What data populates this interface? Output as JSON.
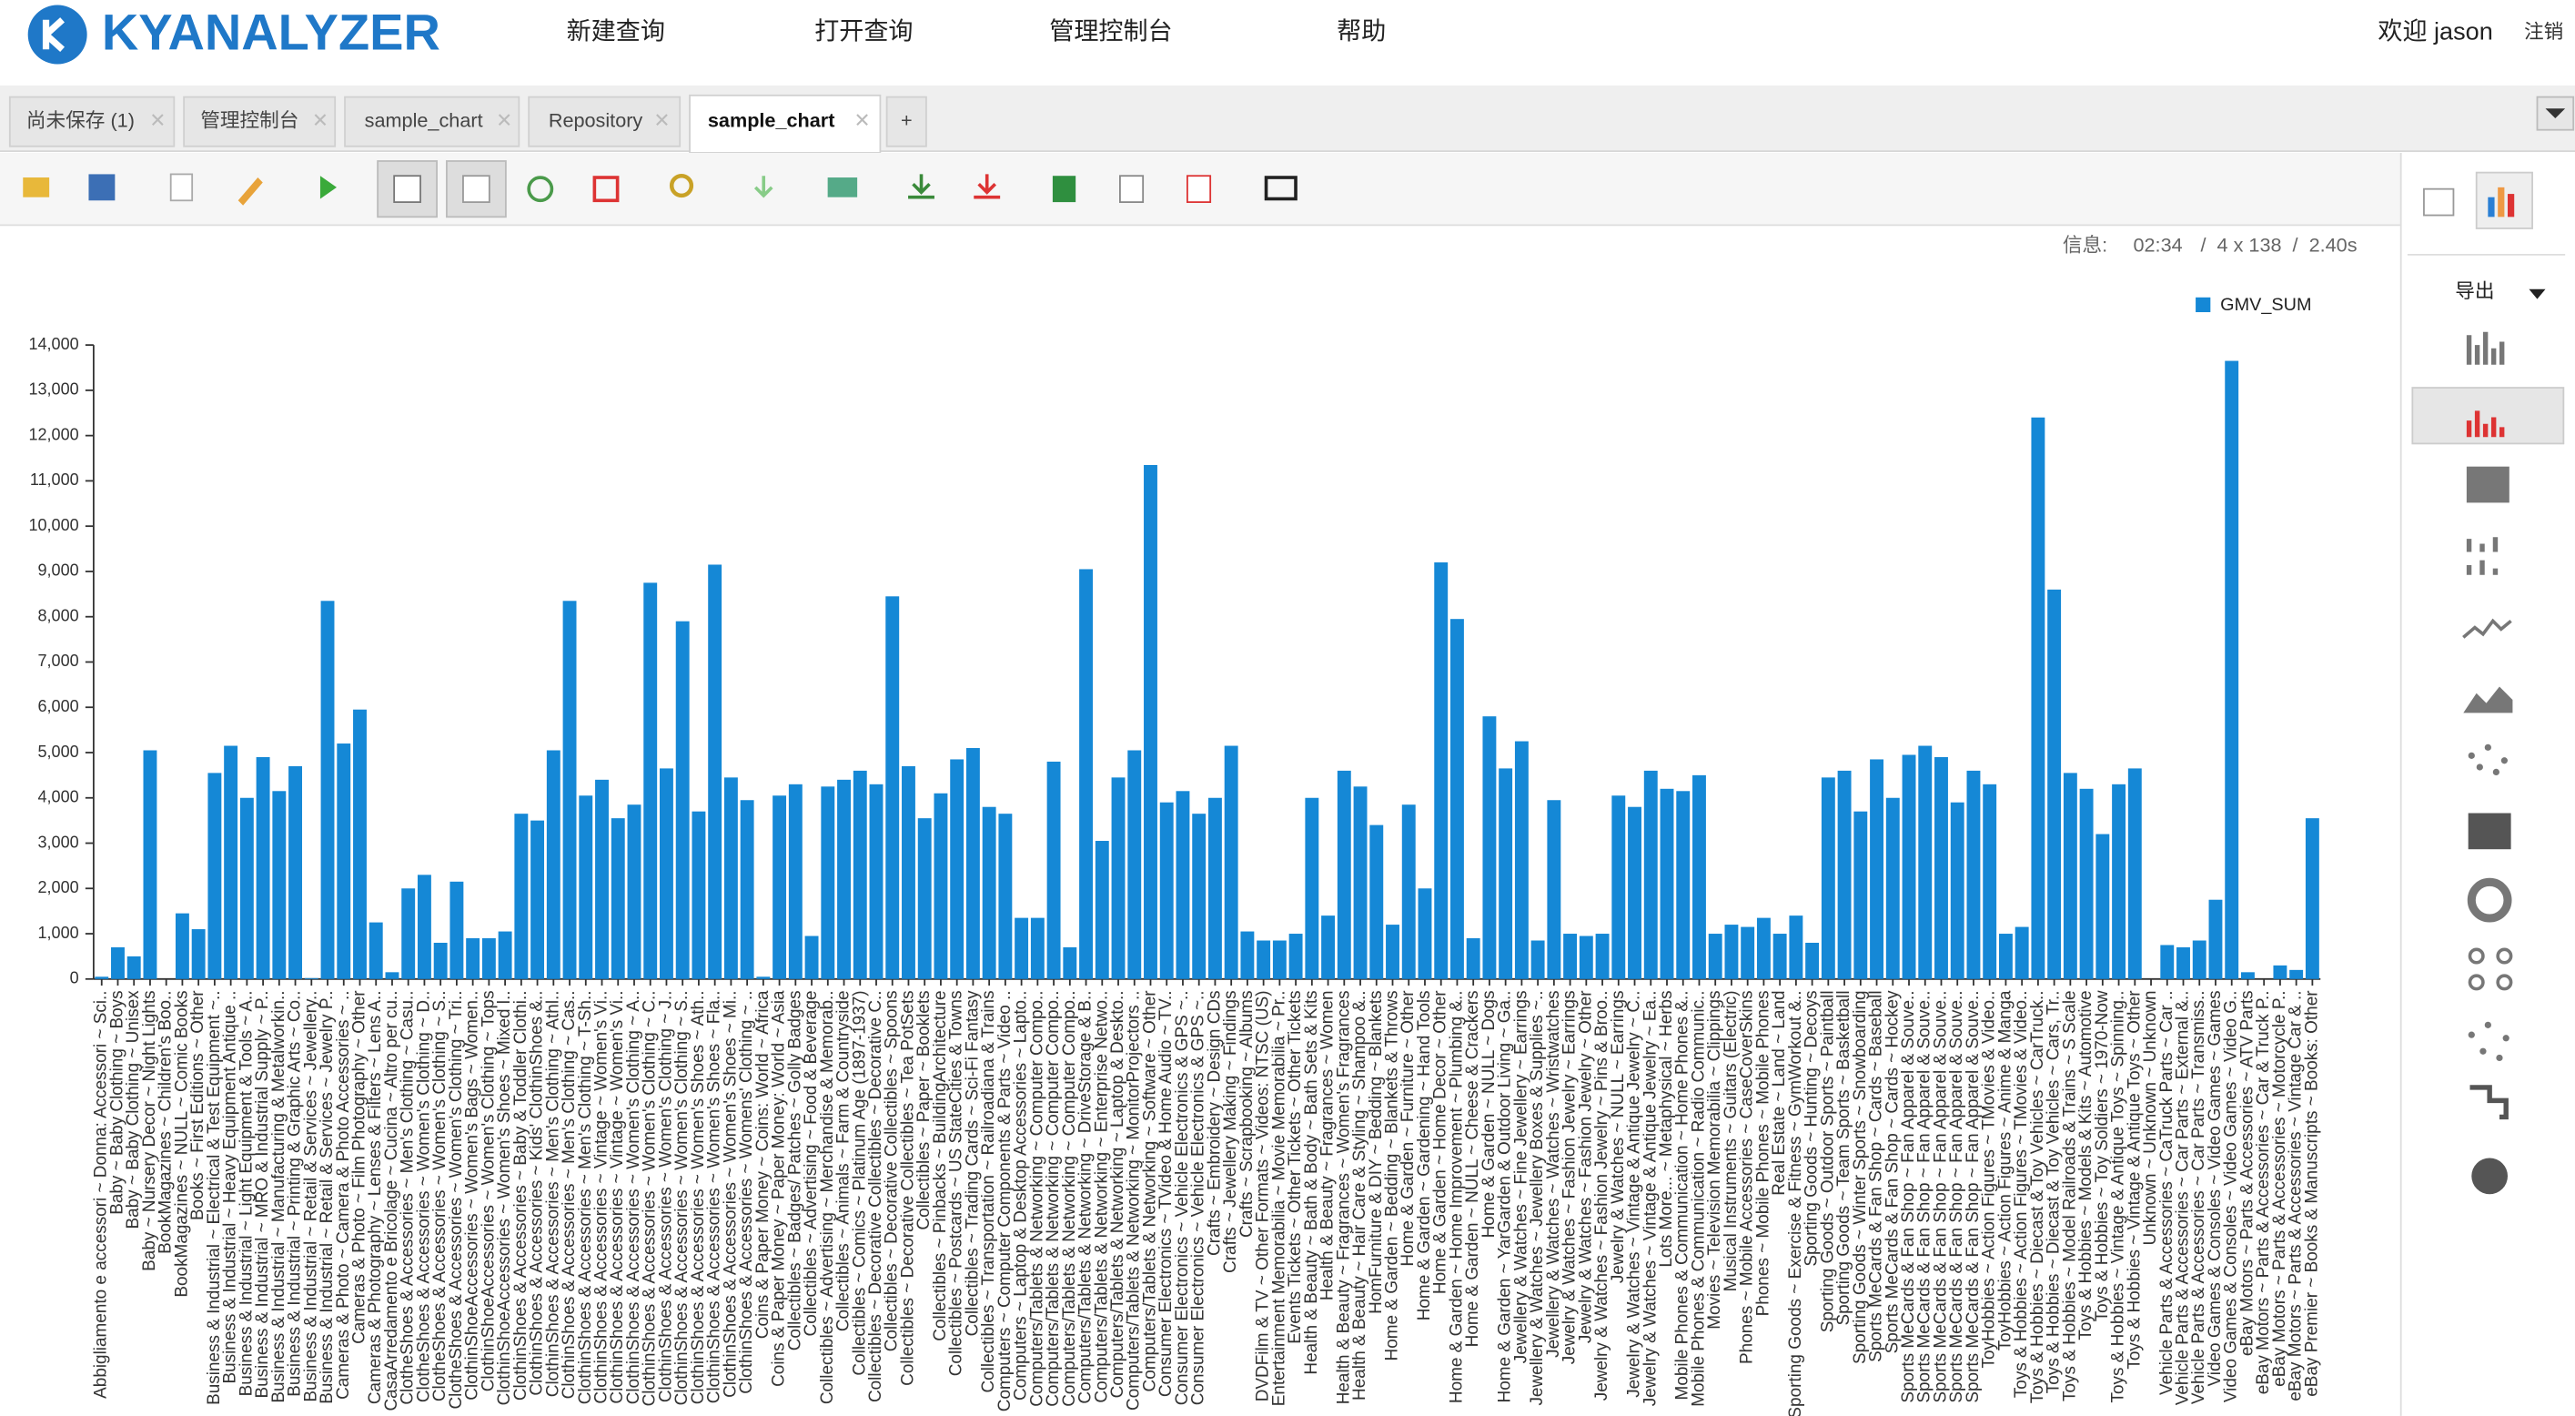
{
  "header": {
    "logo": "KYANALYZER",
    "menu": [
      "新建查询",
      "打开查询",
      "管理控制台",
      "帮助"
    ],
    "welcome": "欢迎 jason",
    "logout": "注销"
  },
  "tabs": [
    "尚未保存 (1)",
    "管理控制台",
    "sample_chart",
    "Repository",
    "sample_chart",
    "+"
  ],
  "info": {
    "label": "信息:",
    "time": "02:34",
    "size": "/  4 x 138  /  2.40s"
  },
  "side": {
    "export": "导出"
  },
  "chart_data": {
    "type": "bar",
    "legend": "GMV_SUM",
    "color": "#1588d6",
    "legend_position": "top-right",
    "ylim": [
      0,
      14000
    ],
    "yticks": [
      0,
      {
        "value": 1000,
        "label": "1,000"
      },
      {
        "value": 2000,
        "label": "2,000"
      },
      {
        "value": 3000,
        "label": "3,000"
      },
      {
        "value": 4000,
        "label": "4,000"
      },
      {
        "value": 5000,
        "label": "5,000"
      },
      {
        "value": 6000,
        "label": "6,000"
      },
      {
        "value": 7000,
        "label": "7,000"
      },
      {
        "value": 8000,
        "label": "8,000"
      },
      {
        "value": 9000,
        "label": "9,000"
      },
      {
        "value": 10000,
        "label": "10,000"
      },
      {
        "value": 11000,
        "label": "11,000"
      },
      {
        "value": 12000,
        "label": "12,000"
      },
      {
        "value": 13000,
        "label": "13,000"
      },
      {
        "value": 14000,
        "label": "14,000"
      }
    ],
    "categories": [
      "Abbigliamento e accessori ~ Donna: Accessori ~ Sci..",
      "Baby ~ Baby Clothing ~ Boys",
      "Baby ~ Baby Clothing ~ Unisex",
      "Baby ~ Nursery Decor ~ Night Lights",
      "BookMagazines ~ Children's Boo..",
      "BookMagazines ~ NULL ~ Comic Books",
      "Books ~ First Editions ~ Other",
      "Business & Industrial ~ Electrical & Test Equipment ~..",
      "Business & Industrial ~ Heavy Equipment Antique ..",
      "Business & Industrial ~ Light Equipment & Tools ~ A..",
      "Business & Industrial ~ MRO & Industrial Supply ~ P..",
      "Business & Industrial ~ Manufacturing & Metalworkin..",
      "Business & Industrial ~ Printing & Graphic Arts ~ Co..",
      "Business & Industrial ~ Retail & Services ~ Jewellery..",
      "Business & Industrial ~ Retail & Services ~ Jewelry P..",
      "Cameras & Photo ~ Camera & Photo Accessories ~ ..",
      "Cameras & Photo ~ Film Photography ~ Other",
      "Cameras & Photography ~ Lenses & Filters ~ Lens A..",
      "CasaArredamento e Bricolage ~ Cucina ~ Altro per cu..",
      "ClotheShoes & Accessories ~ Men's Clothing ~ Casu..",
      "ClotheShoes & Accessories ~ Women's Clothing ~ D..",
      "ClotheShoes & Accessories ~ Women's Clothing ~ S..",
      "ClotheShoes & Accessories ~ Women's Clothing ~ Tri..",
      "ClothinShoeAccessories ~ Women's Bags ~ Women..",
      "ClothinShoeAccessories ~ Women's Clothing ~ Tops",
      "ClothinShoeAccessories ~ Women's Shoes ~ Mixed l..",
      "ClothinShoes & Accessories ~ Baby & Toddler Clothi..",
      "ClothinShoes & Accessories ~ Kids' ClothinShoes &..",
      "ClothinShoes & Accessories ~ Men's Clothing ~ Athl..",
      "ClothinShoes & Accessories ~ Men's Clothing ~ Cas..",
      "ClothinShoes & Accessories ~ Men's Clothing ~ T-Sh..",
      "ClothinShoes & Accessories ~ Vintage ~ Women's Vi..",
      "ClothinShoes & Accessories ~ Vintage ~ Women's Vi..",
      "ClothinShoes & Accessories ~ Women's Clothing ~ A..",
      "ClothinShoes & Accessories ~ Women's Clothing ~ C..",
      "ClothinShoes & Accessories ~ Women's Clothing ~ J..",
      "ClothinShoes & Accessories ~ Women's Clothing ~ S..",
      "ClothinShoes & Accessories ~ Women's Shoes ~ Ath..",
      "ClothinShoes & Accessories ~ Women's Shoes ~ Fla..",
      "ClothinShoes & Accessories ~ Women's Shoes ~ Mi..",
      "ClothinShoes & Accessories ~ Womens' Clothing ~ ..",
      "Coins & Paper Money ~ Coins: World ~ Africa",
      "Coins & Paper Money ~ Paper Money: World ~ Asia",
      "Collectibles ~ Badges/ Patches ~ Golly Badges",
      "Collectibles ~ Advertising ~ Food & Beverage",
      "Collectibles ~ Advertising ~ Merchandise & Memorab..",
      "Collectibles ~ Animals ~ Farm & Countryside",
      "Collectibles ~ Comics ~ Platinum Age (1897-1937)",
      "Collectibles ~ Decorative Collectibles ~ Decorative C..",
      "Collectibles ~ Decorative Collectibles ~ Spoons",
      "Collectibles ~ Decorative Collectibles ~ Tea PotSets",
      "Collectibles ~ Paper ~ Booklets",
      "Collectibles ~ Pinbacks ~ BuildingArchitecture",
      "Collectibles ~ Postcards ~ US StateCities & Towns",
      "Collectibles ~ Trading Cards ~ Sci-Fi Fantasy",
      "Collectibles ~ Transportation ~ Railroadiana & Trains",
      "Computers ~ Computer Components & Parts ~ Video ..",
      "Computers ~ Laptop & Desktop Accessories ~ Lapto..",
      "Computers/Tablets & Networking ~ Computer Compo..",
      "Computers/Tablets & Networking ~ Computer Compo..",
      "Computers/Tablets & Networking ~ Computer Compo..",
      "Computers/Tablets & Networking ~ DriveStorage & B..",
      "Computers/Tablets & Networking ~ Enterprise Netwo..",
      "Computers/Tablets & Networking ~ Laptop & Deskto..",
      "Computers/Tablets & Networking ~ MonitorProjectors ..",
      "Computers/Tablets & Networking ~ Software ~ Other",
      "Consumer Electronics ~ TVideo & Home Audio ~ TV..",
      "Consumer Electronics ~ Vehicle Electronics & GPS ~..",
      "Consumer Electronics ~ Vehicle Electronics & GPS ~..",
      "Crafts ~ Embroidery ~ Design CDs",
      "Crafts ~ Jewellery Making ~ Findings",
      "Crafts ~ Scrapbooking ~ Albums",
      "DVDFilm & TV ~ Other Formats ~ Videos: NTSC (US)",
      "Entertainment Memorabilia ~ Movie Memorabilia ~ Pr..",
      "Events Tickets ~ Other Tickets ~ Other Tickets",
      "Health & Beauty ~ Bath & Body ~ Bath Sets & Kits",
      "Health & Beauty ~ Fragrances ~ Women",
      "Health & Beauty ~ Fragrances ~ Women's Fragrances",
      "Health & Beauty ~ Hair Care & Styling ~ Shampoo &..",
      "HomFurniture & DIY ~ Bedding ~ Blankets",
      "Home & Garden ~ Bedding ~ Blankets & Throws",
      "Home & Garden ~ Furniture ~ Other",
      "Home & Garden ~ Gardening ~ Hand Tools",
      "Home & Garden ~ Home Decor ~ Other",
      "Home & Garden ~ Home Improvement ~ Plumbing &..",
      "Home & Garden ~ NULL ~ Cheese & Crackers",
      "Home & Garden ~ NULL ~ Dogs",
      "Home & Garden ~ YarGarden & Outdoor Living ~ Ga..",
      "Jewellery & Watches ~ Fine Jewellery ~ Earrings",
      "Jewellery & Watches ~ Jewellery Boxes & Supplies ~..",
      "Jewellery & Watches ~ Watches ~ Wristwatches",
      "Jewelry & Watches ~ Fashion Jewelry ~ Earrings",
      "Jewelry & Watches ~ Fashion Jewelry ~ Other",
      "Jewelry & Watches ~ Fashion Jewelry ~ Pins & Broo..",
      "Jewelry & Watches ~ NULL ~ Earrings",
      "Jewelry & Watches ~ Vintage & Antique Jewelry ~ C..",
      "Jewelry & Watches ~ Vintage & Antique Jewelry ~ Ea..",
      "Lots More... ~ Metaphysical ~ Herbs",
      "Mobile Phones & Communication ~ Home Phones &..",
      "Mobile Phones & Communication ~ Radio Communic..",
      "Movies ~ Television Memorabilia ~ Clippings",
      "Musical Instruments ~ Guitars (Electric)",
      "Phones ~ Mobile Accessories ~ CaseCoverSkins",
      "Phones ~ Mobile Phones ~ Mobile Phones",
      "Real Estate ~ Land ~ Land",
      "Sporting Goods ~ Exercise & Fitness ~ GymWorkout &..",
      "Sporting Goods ~ Hunting ~ Decoys",
      "Sporting Goods ~ Outdoor Sports ~ Paintball",
      "Sporting Goods ~ Team Sports ~ Basketball",
      "Sporting Goods ~ Winter Sports ~ Snowboarding",
      "Sports MeCards & Fan Shop ~ Cards ~ Baseball",
      "Sports MeCards & Fan Shop ~ Cards ~ Hockey",
      "Sports MeCards & Fan Shop ~ Fan Apparel & Souve..",
      "Sports MeCards & Fan Shop ~ Fan Apparel & Souve..",
      "Sports MeCards & Fan Shop ~ Fan Apparel & Souve..",
      "Sports MeCards & Fan Shop ~ Fan Apparel & Souve..",
      "Sports MeCards & Fan Shop ~ Fan Apparel & Souve..",
      "ToyHobbies ~ Action Figures ~ TMovies & Video..",
      "ToyHobbies ~ Action Figures ~ Anime & Manga",
      "Toys & Hobbies ~ Action Figures ~ TMovies & Video..",
      "Toys & Hobbies ~ Diecast & Toy Vehicles ~ CarTruck..",
      "Toys & Hobbies ~ Diecast & Toy Vehicles ~ Cars, Tr..",
      "Toys & Hobbies ~ Model Railroads & Trains ~ S Scale",
      "Toys & Hobbies ~ Models & Kits ~ Automotive",
      "Toys & Hobbies ~ Toy Soldiers ~ 1970-Now",
      "Toys & Hobbies ~ Vintage & Antique Toys ~ Spinning..",
      "Toys & Hobbies ~ Vintage & Antique Toys ~ Other",
      "Unknown ~ Unknown ~ Unknown",
      "Vehicle Parts & Accessories ~ CaTruck Parts ~ Car ..",
      "Vehicle Parts & Accessories ~ Car Parts ~ External &..",
      "Vehicle Parts & Accessories ~ Car Parts ~ Transmiss..",
      "Video Games & Consoles ~ Video Games ~ Games",
      "Video Games & Consoles ~ Video Games ~ Video G..",
      "eBay Motors ~ Parts & Accessories ~ ATV Parts",
      "eBay Motors ~ Parts & Accessories ~ Car & Truck P..",
      "eBay Motors ~ Parts & Accessories ~ Motorcycle P..",
      "eBay Motors ~ Parts & Accessories ~ Vintage Car & ..",
      "eBay Premier ~ Books & Manuscripts ~ Books: Other"
    ],
    "values": [
      50,
      700,
      500,
      5050,
      0,
      1450,
      1100,
      4550,
      5150,
      4000,
      4900,
      4150,
      4700,
      20,
      8350,
      5200,
      5950,
      1250,
      150,
      2000,
      2300,
      800,
      2150,
      900,
      900,
      1050,
      3650,
      3500,
      5050,
      8350,
      4050,
      4400,
      3550,
      3850,
      8750,
      4650,
      7900,
      3700,
      9150,
      4450,
      3950,
      50,
      4050,
      4300,
      950,
      4250,
      4400,
      4600,
      4300,
      8450,
      4700,
      3550,
      4100,
      4850,
      5100,
      3800,
      3650,
      1350,
      1350,
      4800,
      700,
      9050,
      3050,
      4450,
      5050,
      11350,
      3900,
      4150,
      3650,
      4000,
      5150,
      1050,
      850,
      850,
      1000,
      4000,
      1400,
      4600,
      4250,
      3400,
      1200,
      3850,
      2000,
      9200,
      7950,
      900,
      5800,
      4650,
      5250,
      850,
      3950,
      1000,
      950,
      1000,
      4050,
      3800,
      4600,
      4200,
      4150,
      4500,
      1000,
      1200,
      1150,
      1350,
      1000,
      1400,
      800,
      4450,
      4600,
      3700,
      4850,
      4000,
      4950,
      5150,
      4900,
      3900,
      4600,
      4300,
      1000,
      1150,
      12400,
      8600,
      4550,
      4200,
      3200,
      4300,
      4650,
      0,
      750,
      700,
      850,
      1750,
      13650,
      150,
      0,
      300,
      200,
      3550
    ]
  }
}
